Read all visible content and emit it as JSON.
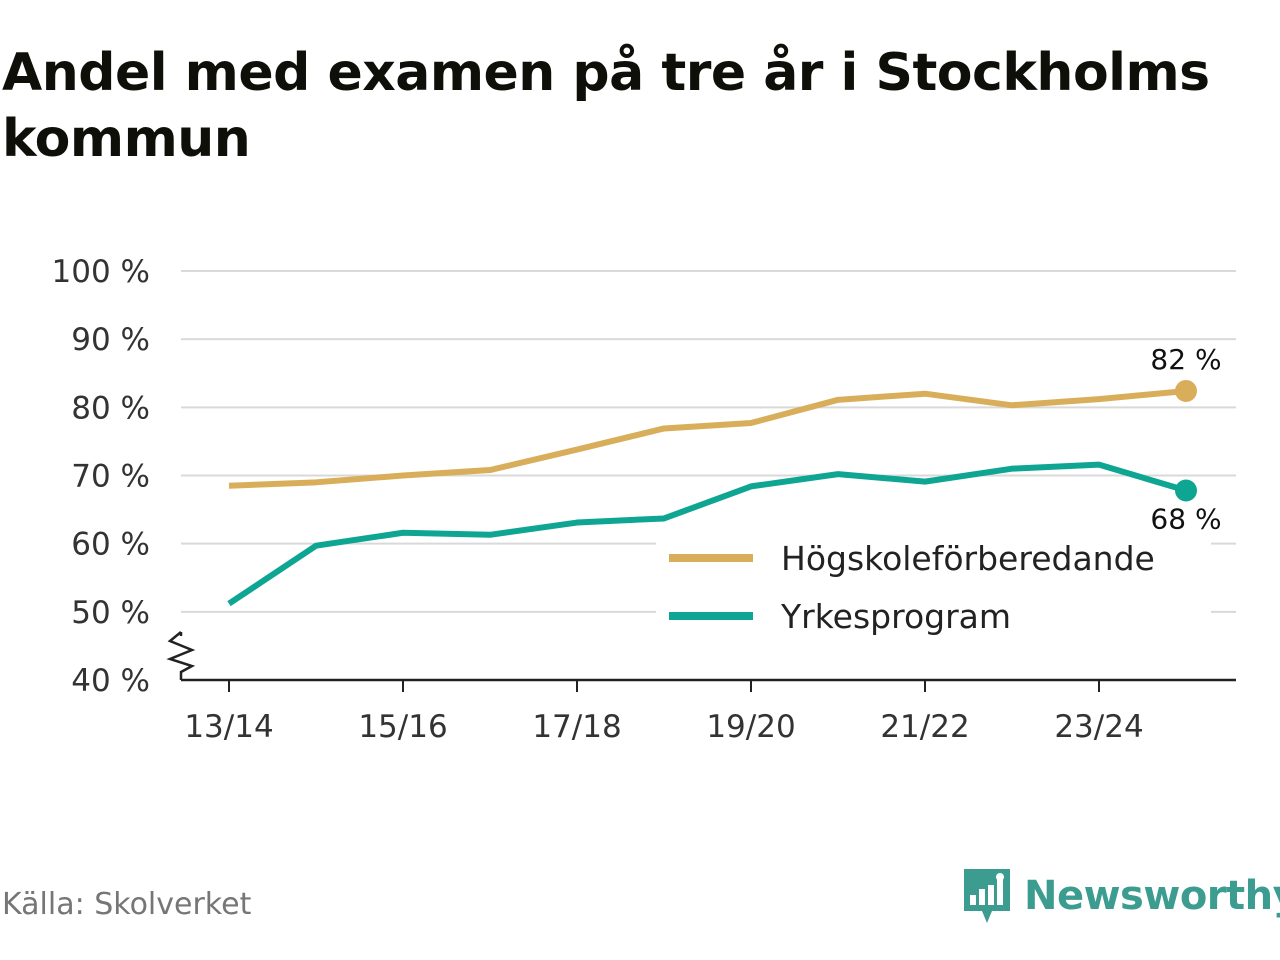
{
  "title": "Andel med examen på tre år i Stockholms kommun",
  "source": "Källa: Skolverket",
  "brand": {
    "name": "Newsworthy",
    "logo_icon": "newsworthy-bar-chart-speech-bubble-icon",
    "color": "#3b9c8f"
  },
  "chart_data": {
    "type": "line",
    "x": [
      "13/14",
      "14/15",
      "15/16",
      "16/17",
      "17/18",
      "18/19",
      "19/20",
      "20/21",
      "21/22",
      "22/23",
      "23/24",
      "24/25"
    ],
    "x_tick_labels": [
      "13/14",
      "15/16",
      "17/18",
      "19/20",
      "21/22",
      "23/24"
    ],
    "y_tick_labels": [
      "100 %",
      "90 %",
      "80 %",
      "70 %",
      "60 %",
      "50 %",
      "40 %"
    ],
    "ylim": [
      40,
      100
    ],
    "y_axis_break": true,
    "grid": true,
    "legend_position": "bottom-right",
    "series": [
      {
        "name": "Högskoleförberedande",
        "color": "#d9ae5a",
        "values": [
          68.5,
          69,
          70,
          70.8,
          73.8,
          76.9,
          77.7,
          81.1,
          82,
          80.3,
          81.2,
          82.4
        ],
        "end_label": "82 %"
      },
      {
        "name": "Yrkesprogram",
        "color": "#0fa593",
        "values": [
          51.2,
          59.7,
          61.6,
          61.3,
          63.1,
          63.7,
          68.4,
          70.2,
          69.1,
          71,
          71.6,
          67.8
        ],
        "end_label": "68 %"
      }
    ]
  }
}
